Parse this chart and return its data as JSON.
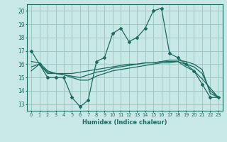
{
  "title": "",
  "xlabel": "Humidex (Indice chaleur)",
  "xlim": [
    -0.5,
    23.5
  ],
  "ylim": [
    12.5,
    20.5
  ],
  "yticks": [
    13,
    14,
    15,
    16,
    17,
    18,
    19,
    20
  ],
  "xticks": [
    0,
    1,
    2,
    3,
    4,
    5,
    6,
    7,
    8,
    9,
    10,
    11,
    12,
    13,
    14,
    15,
    16,
    17,
    18,
    19,
    20,
    21,
    22,
    23
  ],
  "background_color": "#c8e8e8",
  "grid_color": "#a0c8c0",
  "line_color": "#1a6a60",
  "series": [
    {
      "x": [
        0,
        1,
        2,
        3,
        4,
        5,
        6,
        7,
        8,
        9,
        10,
        11,
        12,
        13,
        14,
        15,
        16,
        17,
        18,
        19,
        20,
        21,
        22,
        23
      ],
      "y": [
        17.0,
        16.0,
        15.0,
        15.0,
        15.0,
        13.5,
        12.8,
        13.3,
        16.2,
        16.5,
        18.3,
        18.7,
        17.7,
        18.0,
        18.7,
        20.0,
        20.2,
        16.8,
        16.5,
        16.0,
        15.5,
        14.5,
        13.5,
        13.5
      ],
      "marker": "D",
      "markersize": 2.0
    },
    {
      "x": [
        0,
        1,
        2,
        3,
        4,
        5,
        6,
        7,
        8,
        9,
        10,
        11,
        12,
        13,
        14,
        15,
        16,
        17,
        18,
        19,
        20,
        21,
        22,
        23
      ],
      "y": [
        15.5,
        16.0,
        15.3,
        15.3,
        15.3,
        15.3,
        15.4,
        15.5,
        15.6,
        15.7,
        15.8,
        15.9,
        16.0,
        16.0,
        16.1,
        16.1,
        16.2,
        16.3,
        16.3,
        16.2,
        16.0,
        15.6,
        13.8,
        13.5
      ],
      "marker": null
    },
    {
      "x": [
        0,
        1,
        2,
        3,
        4,
        5,
        6,
        7,
        8,
        9,
        10,
        11,
        12,
        13,
        14,
        15,
        16,
        17,
        18,
        19,
        20,
        21,
        22,
        23
      ],
      "y": [
        15.8,
        16.0,
        15.4,
        15.3,
        15.2,
        15.1,
        15.0,
        15.2,
        15.4,
        15.5,
        15.7,
        15.8,
        15.9,
        16.0,
        16.1,
        16.1,
        16.2,
        16.2,
        16.2,
        16.0,
        15.8,
        15.3,
        14.0,
        13.5
      ],
      "marker": null
    },
    {
      "x": [
        0,
        1,
        2,
        3,
        4,
        5,
        6,
        7,
        8,
        9,
        10,
        11,
        12,
        13,
        14,
        15,
        16,
        17,
        18,
        19,
        20,
        21,
        22,
        23
      ],
      "y": [
        16.2,
        16.1,
        15.5,
        15.3,
        15.2,
        15.0,
        14.8,
        14.8,
        15.1,
        15.3,
        15.5,
        15.6,
        15.7,
        15.8,
        15.9,
        16.0,
        16.1,
        16.1,
        16.2,
        15.8,
        15.5,
        14.9,
        14.2,
        13.5
      ],
      "marker": null
    }
  ]
}
